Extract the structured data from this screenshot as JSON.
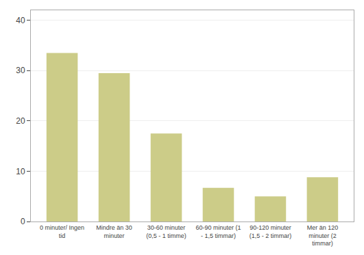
{
  "chart_data": {
    "type": "bar",
    "categories": [
      "0 minuter/ Ingen\ntid",
      "Mindre än 30\nminuter",
      "30-60 minuter\n(0,5 - 1 timme)",
      "60-90 minuter (1\n- 1,5 timmar)",
      "90-120 minuter\n(1,5 - 2 timmar)",
      "Mer än 120\nminuter (2\ntimmar)"
    ],
    "values": [
      33.5,
      29.5,
      17.5,
      6.7,
      5.0,
      8.8
    ],
    "color": "#cccc88",
    "ylim": [
      0,
      42
    ],
    "yticks": [
      0,
      10,
      20,
      30,
      40
    ],
    "grid": true
  }
}
